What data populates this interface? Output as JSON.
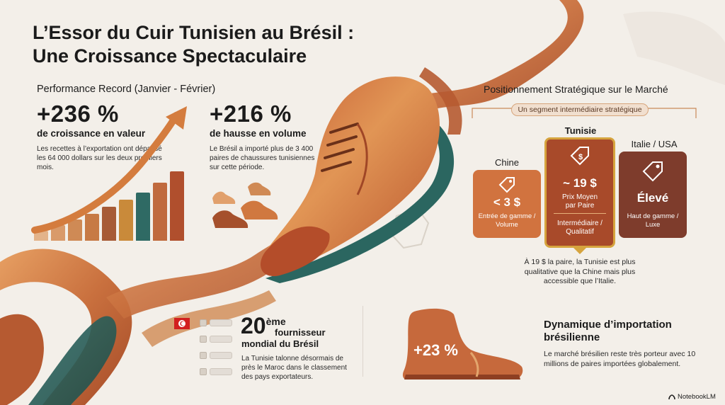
{
  "title": {
    "line1": "L’Essor du Cuir Tunisien au Brésil :",
    "line2": "Une Croissance Spectaculaire"
  },
  "performance": {
    "heading": "Performance Record (Janvier - Février)",
    "value_growth": {
      "number": "+236 %",
      "label": "de croissance en valeur",
      "description": "Les recettes à l’exportation ont dépassé les 64 000 dollars sur les deux premiers mois."
    },
    "volume_growth": {
      "number": "+216 %",
      "label": "de hausse en volume",
      "description": "Le Brésil a importé plus de 3 400 paires de chaussures tunisiennes sur cette période."
    }
  },
  "market": {
    "heading": "Positionnement Stratégique sur le Marché",
    "segment_label": "Un segment intermédiaire stratégique",
    "tiers": [
      {
        "country": "Chine",
        "price": "< 3 $",
        "sub": "",
        "level": "Entrée de gamme / Volume"
      },
      {
        "country": "Tunisie",
        "price": "~ 19 $",
        "sub": "Prix Moyen par Paire",
        "level": "Intermédiaire / Qualitatif"
      },
      {
        "country": "Italie / USA",
        "price": "Élevé",
        "sub": "",
        "level": "Haut de gamme / Luxe"
      }
    ],
    "note": "À 19 $ la paire, la Tunisie est plus qualitative que la Chine mais plus accessible que l’Italie.",
    "currency_icon": "dollar-tag-icon"
  },
  "supplier": {
    "rank": "20",
    "rank_suffix": "ème",
    "label_line1": "fournisseur",
    "label_line2": "mondial du Brésil",
    "description": "La Tunisie talonne désormais de près le Maroc dans le classement des pays exportateurs.",
    "flag_icon": "tunisia-flag-icon"
  },
  "import": {
    "badge": "+23 %",
    "heading": "Dynamique d’importation brésilienne",
    "description": "Le marché brésilien reste très porteur avec 10 millions de paires importées globalement."
  },
  "brand": {
    "name": "NotebookLM"
  },
  "colors": {
    "leather_light": "#d7834a",
    "leather_dark": "#b04f2d",
    "teal": "#2f6a64",
    "gold": "#c99a3a",
    "brown_box": "#8b4532",
    "background": "#f3efe9"
  }
}
